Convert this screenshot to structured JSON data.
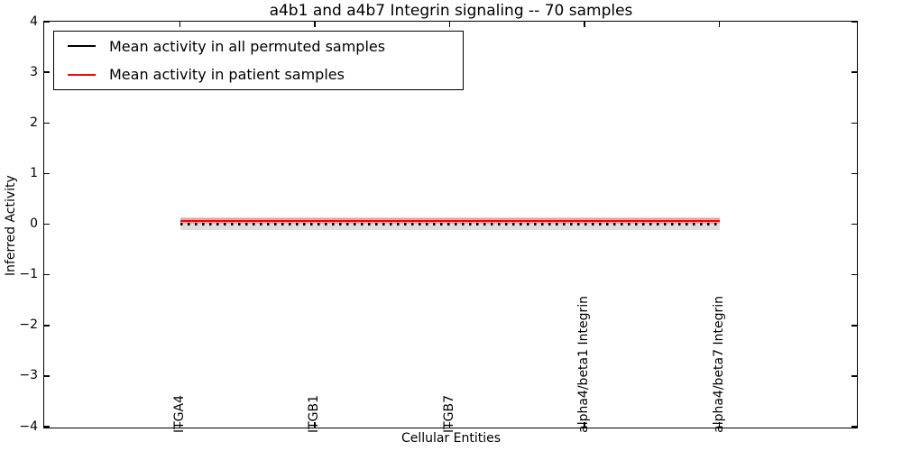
{
  "chart_data": {
    "type": "line",
    "title": "a4b1 and a4b7 Integrin signaling -- 70 samples",
    "xlabel": "Cellular Entities",
    "ylabel": "Inferred Activity",
    "ylim": [
      -4,
      4
    ],
    "yticks": [
      4,
      3,
      2,
      1,
      0,
      -1,
      -2,
      -3,
      -4
    ],
    "ytick_labels": [
      "4",
      "3",
      "2",
      "1",
      "0",
      "−1",
      "−2",
      "−3",
      "−4"
    ],
    "categories": [
      "ITGA4",
      "ITGB1",
      "ITGB7",
      "alpha4/beta1 Integrin",
      "alpha4/beta7 Integrin"
    ],
    "series": [
      {
        "name": "Mean activity in all permuted samples",
        "color": "#000000",
        "line_style": "dotted",
        "values": [
          0.0,
          0.0,
          0.0,
          0.0,
          0.0
        ],
        "band_halfwidth": 0.12,
        "band_color": "#00000021"
      },
      {
        "name": "Mean activity in patient samples",
        "color": "#ff0000",
        "line_style": "solid",
        "values": [
          0.07,
          0.07,
          0.07,
          0.07,
          0.07
        ],
        "band_halfwidth": 0.06,
        "band_color": "#ff000040"
      }
    ],
    "legend_position": "upper left",
    "grid": false
  }
}
